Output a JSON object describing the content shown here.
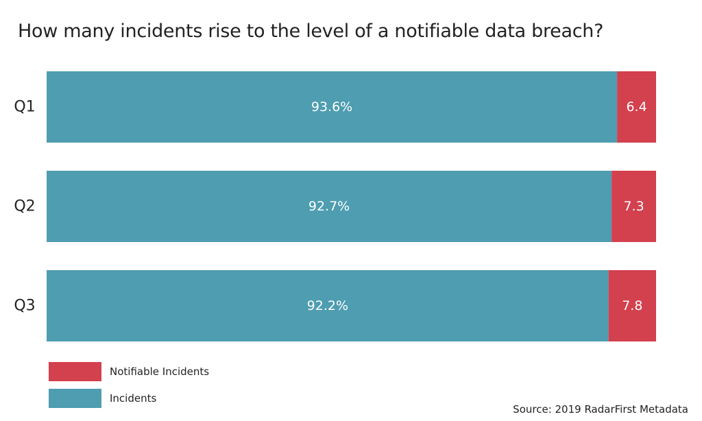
{
  "chart_data": {
    "type": "bar",
    "orientation": "horizontal",
    "stacked": true,
    "title": "How many incidents rise to the level of a notifiable data breach?",
    "categories": [
      "Q1",
      "Q2",
      "Q3"
    ],
    "series": [
      {
        "name": "Incidents",
        "color": "#4e9db1",
        "values": [
          93.6,
          92.7,
          92.2
        ],
        "labels": [
          "93.6%",
          "92.7%",
          "92.2%"
        ]
      },
      {
        "name": "Notifiable Incidents",
        "color": "#d3404e",
        "values": [
          6.4,
          7.3,
          7.8
        ],
        "labels": [
          "6.4",
          "7.3",
          "7.8"
        ]
      }
    ],
    "xlim": [
      0,
      100
    ],
    "grid": false,
    "legend_position": "bottom-left",
    "source": "Source: 2019 RadarFirst Metadata"
  }
}
